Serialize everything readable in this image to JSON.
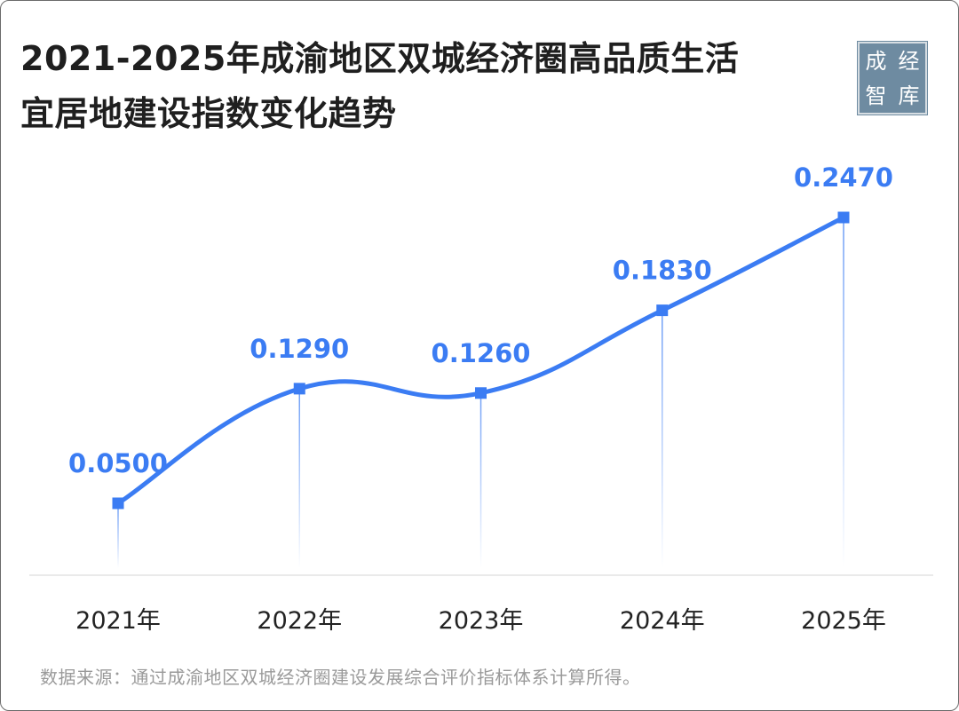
{
  "title_line1": "2021-2025年成渝地区双城经济圈高品质生活",
  "title_line2": "宜居地建设指数变化趋势",
  "logo_chars": [
    "成",
    "经",
    "智",
    "库"
  ],
  "source": "数据来源：通过成渝地区双城经济圈建设发展综合评价指标体系计算所得。",
  "colors": {
    "series": "#3b7cf3",
    "label": "#3b7cf3",
    "axis_text": "#222222",
    "baseline": "#e3e3e3",
    "logo_bg": "#6e8ba1"
  },
  "chart_data": {
    "type": "line",
    "smooth": true,
    "categories": [
      "2021年",
      "2022年",
      "2023年",
      "2024年",
      "2025年"
    ],
    "values": [
      0.05,
      0.129,
      0.126,
      0.183,
      0.247
    ],
    "data_labels": [
      "0.0500",
      "0.1290",
      "0.1260",
      "0.1830",
      "0.2470"
    ],
    "marker": "square",
    "drop_lines": true,
    "y_axis_visible": false,
    "grid": false,
    "legend": "none"
  }
}
